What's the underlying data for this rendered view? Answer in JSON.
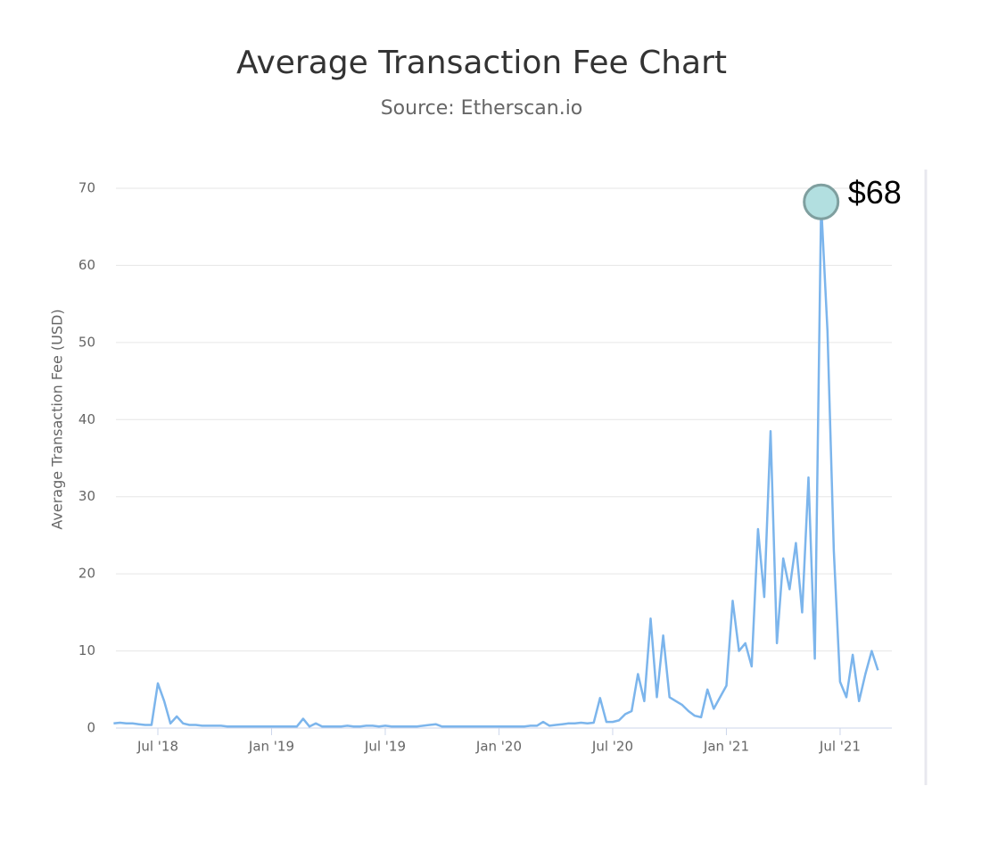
{
  "chart_data": {
    "type": "line",
    "title": "Average Transaction Fee Chart",
    "subtitle": "Source: Etherscan.io",
    "y_label": "Average Transaction Fee (USD)",
    "annotation": "$68",
    "color": "#7cb5ec",
    "grid": true,
    "categories": [
      null,
      null,
      null,
      null,
      null,
      null,
      null,
      "Jul '18",
      null,
      null,
      null,
      null,
      null,
      null,
      null,
      null,
      null,
      null,
      null,
      null,
      null,
      null,
      null,
      null,
      null,
      "Jan '19",
      null,
      null,
      null,
      null,
      null,
      null,
      null,
      null,
      null,
      null,
      null,
      null,
      null,
      null,
      null,
      null,
      null,
      "Jul '19",
      null,
      null,
      null,
      null,
      null,
      null,
      null,
      null,
      null,
      null,
      null,
      null,
      null,
      null,
      null,
      null,
      null,
      "Jan '20",
      null,
      null,
      null,
      null,
      null,
      null,
      null,
      null,
      null,
      null,
      null,
      null,
      null,
      null,
      null,
      null,
      null,
      "Jul '20",
      null,
      null,
      null,
      null,
      null,
      null,
      null,
      null,
      null,
      null,
      null,
      null,
      null,
      null,
      null,
      null,
      null,
      "Jan '21",
      null,
      null,
      null,
      null,
      null,
      null,
      null,
      null,
      null,
      null,
      null,
      null,
      null,
      null,
      null,
      null,
      null,
      "Jul '21",
      null,
      null,
      null,
      null,
      null,
      null
    ],
    "values": [
      0.6,
      0.7,
      0.6,
      0.6,
      0.5,
      0.4,
      0.4,
      5.8,
      3.5,
      0.6,
      1.5,
      0.6,
      0.4,
      0.4,
      0.3,
      0.3,
      0.3,
      0.3,
      0.2,
      0.2,
      0.2,
      0.2,
      0.2,
      0.2,
      0.2,
      0.2,
      0.2,
      0.2,
      0.2,
      0.2,
      1.2,
      0.2,
      0.6,
      0.2,
      0.2,
      0.2,
      0.2,
      0.3,
      0.2,
      0.2,
      0.3,
      0.3,
      0.2,
      0.3,
      0.2,
      0.2,
      0.2,
      0.2,
      0.2,
      0.3,
      0.4,
      0.5,
      0.2,
      0.2,
      0.2,
      0.2,
      0.2,
      0.2,
      0.2,
      0.2,
      0.2,
      0.2,
      0.2,
      0.2,
      0.2,
      0.2,
      0.3,
      0.3,
      0.8,
      0.3,
      0.4,
      0.5,
      0.6,
      0.6,
      0.7,
      0.6,
      0.7,
      3.9,
      0.8,
      0.8,
      1,
      1.8,
      2.2,
      7,
      3.5,
      14.2,
      4,
      12,
      4,
      3.5,
      3,
      2.2,
      1.6,
      1.4,
      5,
      2.5,
      4,
      5.5,
      16.5,
      10,
      11,
      8,
      25.8,
      17,
      38.5,
      11,
      22,
      18,
      24,
      15,
      32.5,
      9,
      68,
      51.5,
      23,
      6,
      4,
      9.5,
      3.5,
      7,
      10,
      7.5
    ],
    "ylim": [
      0,
      70
    ],
    "yticks": [
      0,
      10,
      20,
      30,
      40,
      50,
      60,
      70
    ]
  }
}
